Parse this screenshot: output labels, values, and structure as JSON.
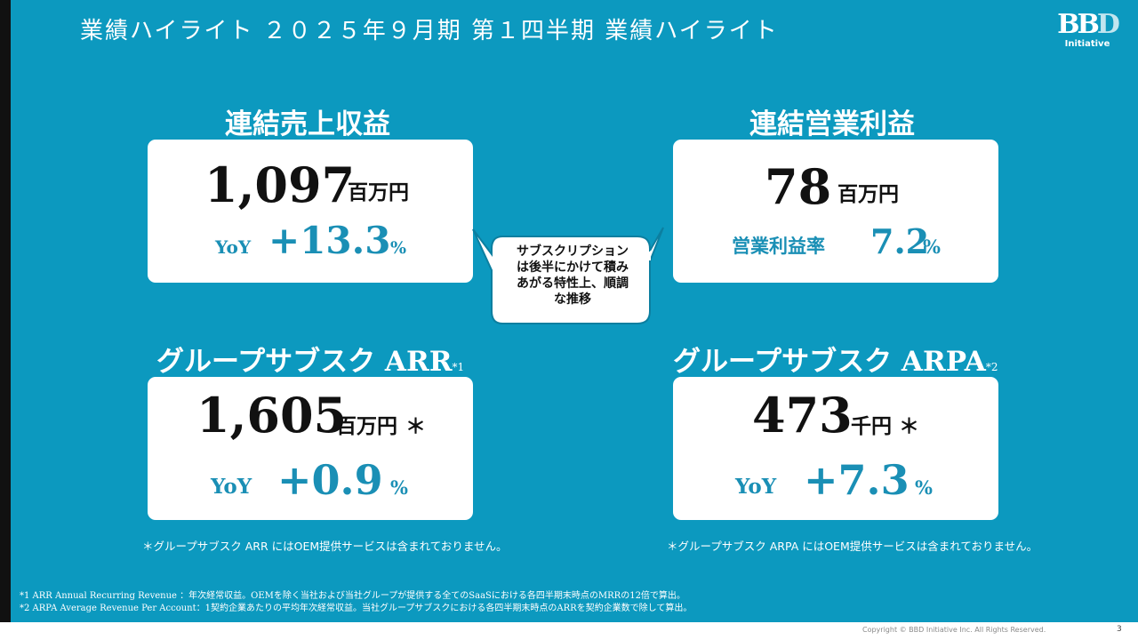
{
  "header": {
    "title": "業績ハイライト ２０２５年９月期 第１四半期 業績ハイライト",
    "logo_mark_b": "BB",
    "logo_mark_d": "D",
    "logo_sub": "Initiative"
  },
  "revenue": {
    "title": "連結売上収益",
    "value": "1,097",
    "unit": "百万円",
    "yoy_label": "YoY",
    "yoy_value": "+13.3",
    "yoy_unit": "%"
  },
  "op_profit": {
    "title": "連結営業利益",
    "value": "78",
    "unit": "百万円",
    "margin_label": "営業利益率",
    "margin_value": "7.2",
    "margin_unit": "%"
  },
  "bubble": {
    "lines": [
      "サブスクリプション",
      "は後半にかけて積み",
      "あがる特性上、順調",
      "な推移"
    ]
  },
  "arr": {
    "title": "グループサブスク ARR",
    "title_sup": "*1",
    "value": "1,605",
    "unit": "百万円",
    "asterisk": "＊",
    "yoy_label": "YoY",
    "yoy_value": "+0.9",
    "yoy_unit": "%",
    "note": "＊グループサブスク ARR にはOEM提供サービスは含まれておりません。"
  },
  "arpa": {
    "title": "グループサブスク ARPA",
    "title_sup": "*2",
    "value": "473",
    "unit": "千円",
    "asterisk": "＊",
    "yoy_label": "YoY",
    "yoy_value": "+7.3",
    "yoy_unit": "%",
    "note": "＊グループサブスク ARPA にはOEM提供サービスは含まれておりません。"
  },
  "footnotes": [
    "*1 ARR Annual Recurring Revenue ：年次経常収益。OEMを除く当社および当社グループが提供する全てのSaaSにおける各四半期末時点のMRRの12倍で算出。",
    "*2 ARPA Average Revenue Per Account：1契約企業あたりの平均年次経常収益。当社グループサブスクにおける各四半期末時点のARRを契約企業数で除して算出。"
  ],
  "footer": {
    "copyright": "Copyright © BBD Initiative Inc. All Rights Reserved.",
    "page": "3"
  },
  "colors": {
    "background": "#0C99BF",
    "accent_text": "#1A8FB5",
    "card": "#FFFFFF"
  }
}
